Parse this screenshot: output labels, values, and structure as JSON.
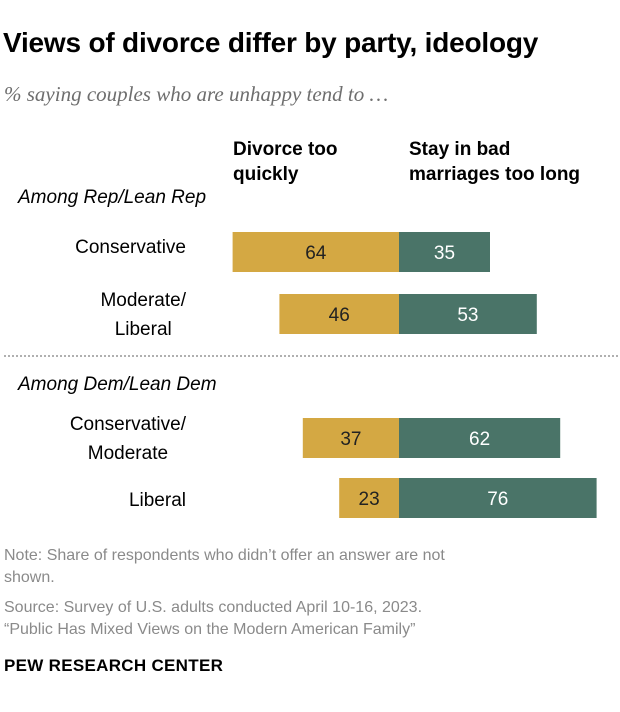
{
  "title": "Views of divorce differ by party, ideology",
  "subtitle": "% saying couples who are unhappy tend to …",
  "colors": {
    "divorce": "#d4a843",
    "stay": "#4a7468"
  },
  "chart_data": {
    "type": "bar",
    "orientation": "horizontal-diverging",
    "title": "Views of divorce differ by party, ideology",
    "subtitle": "% saying couples who are unhappy tend to …",
    "column_headers": {
      "divorce": [
        "Divorce too",
        "quickly"
      ],
      "stay": [
        "Stay in bad",
        "marriages too long"
      ]
    },
    "groups": [
      {
        "label": "Among Rep/Lean Rep",
        "rows": [
          {
            "label": [
              "Conservative"
            ],
            "divorce": 64,
            "stay": 35
          },
          {
            "label": [
              "Moderate/",
              "Liberal"
            ],
            "divorce": 46,
            "stay": 53
          }
        ]
      },
      {
        "label": "Among Dem/Lean Dem",
        "rows": [
          {
            "label": [
              "Conservative/",
              "Moderate"
            ],
            "divorce": 37,
            "stay": 62
          },
          {
            "label": [
              "Liberal"
            ],
            "divorce": 23,
            "stay": 76
          }
        ]
      }
    ],
    "series": [
      {
        "name": "Divorce too quickly",
        "values": [
          64,
          46,
          37,
          23
        ]
      },
      {
        "name": "Stay in bad marriages too long",
        "values": [
          35,
          53,
          62,
          76
        ]
      }
    ]
  },
  "notes": [
    "Note: Share of respondents who didn’t offer an answer are not",
    "shown.",
    "Source: Survey of U.S. adults conducted April 10-16, 2023.",
    "“Public Has Mixed Views on the Modern American Family”"
  ],
  "logo": "PEW RESEARCH CENTER"
}
